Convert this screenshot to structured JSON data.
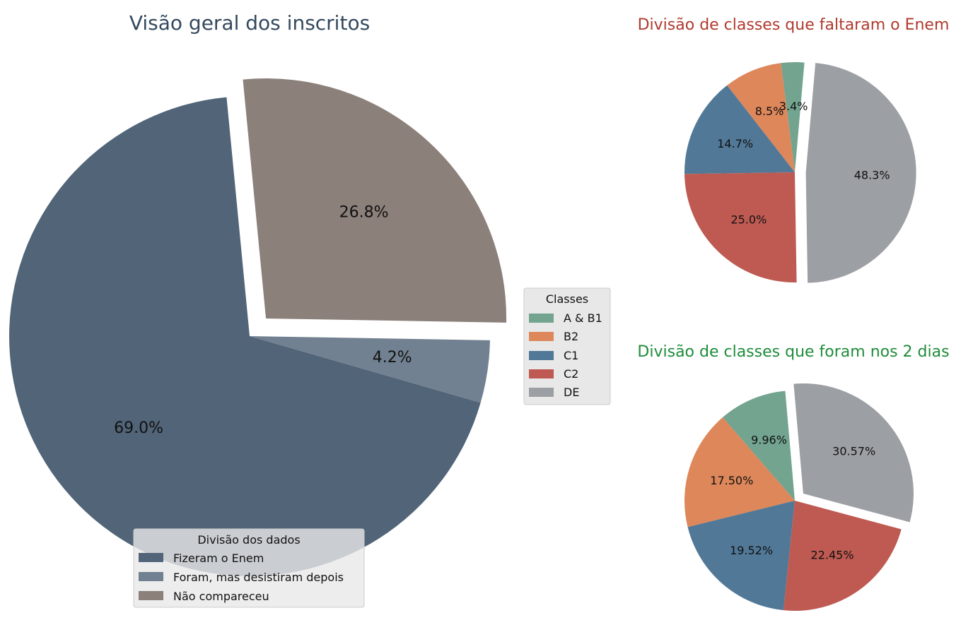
{
  "chart_data": [
    {
      "type": "pie",
      "title": "Visão geral dos inscritos",
      "title_color": "#34495e",
      "slices": [
        {
          "label": "Fizeram o Enem",
          "value": 69.0,
          "pct_label": "69.0%",
          "color": "#516478",
          "explode": false
        },
        {
          "label": "Foram, mas desistiram depois",
          "value": 4.2,
          "pct_label": "4.2%",
          "color": "#728191",
          "explode": false
        },
        {
          "label": "Não compareceu",
          "value": 26.8,
          "pct_label": "26.8%",
          "color": "#8b807a",
          "explode": true
        }
      ],
      "legend": {
        "title": "Divisão dos dados",
        "placement": "lower-center",
        "entries": [
          "Fizeram o Enem",
          "Foram, mas desistiram depois",
          "Não compareceu"
        ]
      }
    },
    {
      "type": "pie",
      "title": "Divisão de classes que faltaram o Enem",
      "title_color": "#b03a2e",
      "slices": [
        {
          "label": "A & B1",
          "value": 3.4,
          "pct_label": "3.4%",
          "color": "#72a48f",
          "explode": false
        },
        {
          "label": "B2",
          "value": 8.5,
          "pct_label": "8.5%",
          "color": "#dd875a",
          "explode": false
        },
        {
          "label": "C1",
          "value": 14.7,
          "pct_label": "14.7%",
          "color": "#517897",
          "explode": false
        },
        {
          "label": "C2",
          "value": 25.0,
          "pct_label": "25.0%",
          "color": "#be5a51",
          "explode": false
        },
        {
          "label": "DE",
          "value": 48.3,
          "pct_label": "48.3%",
          "color": "#9c9fa3",
          "explode": true
        }
      ]
    },
    {
      "type": "pie",
      "title": "Divisão de classes que foram nos 2 dias",
      "title_color": "#1e8c3a",
      "slices": [
        {
          "label": "A & B1",
          "value": 9.96,
          "pct_label": "9.96%",
          "color": "#72a48f",
          "explode": false
        },
        {
          "label": "B2",
          "value": 17.5,
          "pct_label": "17.50%",
          "color": "#dd875a",
          "explode": false
        },
        {
          "label": "C1",
          "value": 19.52,
          "pct_label": "19.52%",
          "color": "#517897",
          "explode": false
        },
        {
          "label": "C2",
          "value": 22.45,
          "pct_label": "22.45%",
          "color": "#be5a51",
          "explode": false
        },
        {
          "label": "DE",
          "value": 30.57,
          "pct_label": "30.57%",
          "color": "#9c9fa3",
          "explode": true
        }
      ]
    }
  ],
  "classes_legend": {
    "title": "Classes",
    "entries": [
      {
        "label": "A & B1",
        "color": "#72a48f"
      },
      {
        "label": "B2",
        "color": "#dd875a"
      },
      {
        "label": "C1",
        "color": "#517897"
      },
      {
        "label": "C2",
        "color": "#be5a51"
      },
      {
        "label": "DE",
        "color": "#9c9fa3"
      }
    ]
  }
}
